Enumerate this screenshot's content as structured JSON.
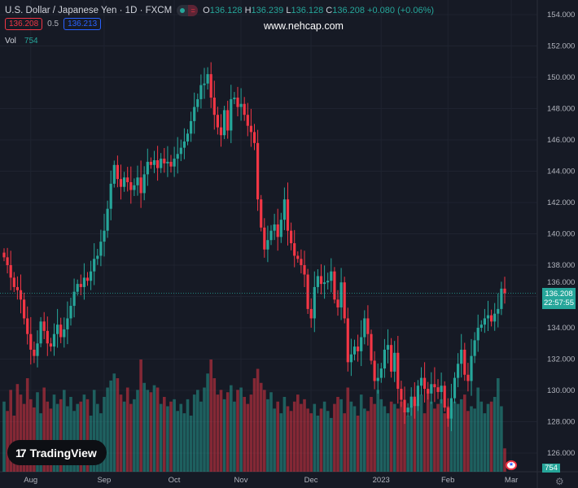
{
  "header": {
    "title": "U.S. Dollar / Japanese Yen · 1D · FXCM",
    "o_label": "O",
    "o": "136.128",
    "h_label": "H",
    "h": "136.239",
    "l_label": "L",
    "l": "136.128",
    "c_label": "C",
    "c": "136.208",
    "change": "+0.080 (+0.06%)",
    "market_status": "="
  },
  "trade": {
    "sell": "136.208",
    "spread": "0.5",
    "buy": "136.213"
  },
  "volume": {
    "label": "Vol",
    "value": "754"
  },
  "watermark": "www.nehcap.com",
  "logo": {
    "text": "TradingView",
    "mark": "17"
  },
  "price_tag": {
    "price": "136.208",
    "countdown": "22:57:55"
  },
  "vol_tag": "754",
  "colors": {
    "up": "#26a69a",
    "down": "#f23645",
    "bg": "#161a25",
    "grid": "#1f2330"
  },
  "chart_data": {
    "type": "candlestick",
    "y_ticks": [
      154,
      152,
      150,
      148,
      146,
      144,
      142,
      140,
      138,
      136,
      134,
      132,
      130,
      128,
      126
    ],
    "ylim": [
      125.5,
      154.5
    ],
    "x_ticks": [
      {
        "label": "Aug",
        "index": 7
      },
      {
        "label": "Sep",
        "index": 29
      },
      {
        "label": "Oct",
        "index": 50
      },
      {
        "label": "Nov",
        "index": 70
      },
      {
        "label": "Dec",
        "index": 91
      },
      {
        "label": "2023",
        "index": 112
      },
      {
        "label": "Feb",
        "index": 132
      },
      {
        "label": "Mar",
        "index": 151
      }
    ],
    "closes": [
      138.5,
      138.0,
      137.2,
      136.6,
      136.4,
      135.8,
      134.6,
      133.6,
      132.6,
      132.2,
      133.0,
      134.4,
      133.8,
      133.0,
      132.8,
      133.6,
      134.2,
      133.4,
      133.9,
      134.6,
      135.4,
      136.3,
      136.8,
      136.6,
      137.2,
      137.0,
      137.6,
      138.4,
      138.6,
      139.5,
      140.2,
      141.6,
      143.2,
      144.4,
      143.5,
      143.0,
      143.6,
      143.3,
      142.8,
      143.1,
      143.6,
      142.6,
      143.8,
      144.6,
      144.4,
      144.7,
      144.2,
      144.8,
      144.5,
      144.6,
      144.3,
      144.8,
      145.1,
      145.5,
      145.9,
      146.4,
      147.2,
      148.1,
      148.6,
      149.5,
      149.6,
      150.2,
      148.7,
      147.6,
      146.8,
      146.3,
      147.9,
      146.6,
      148.6,
      148.7,
      148.1,
      148.3,
      147.6,
      146.9,
      146.5,
      145.8,
      142.2,
      140.4,
      139.0,
      139.6,
      140.2,
      140.6,
      139.8,
      140.9,
      142.2,
      140.2,
      139.4,
      138.6,
      138.4,
      138.0,
      137.4,
      135.2,
      134.6,
      136.6,
      137.3,
      136.8,
      136.9,
      137.0,
      137.6,
      135.8,
      135.3,
      136.9,
      134.6,
      131.8,
      132.3,
      132.8,
      132.5,
      133.4,
      134.6,
      133.6,
      131.9,
      130.6,
      130.8,
      131.4,
      132.6,
      132.9,
      131.2,
      132.4,
      130.1,
      129.4,
      128.6,
      128.9,
      129.6,
      129.0,
      130.3,
      130.8,
      130.1,
      129.8,
      130.4,
      130.2,
      129.9,
      130.3,
      128.9,
      128.2,
      129.5,
      130.8,
      131.7,
      132.6,
      131.0,
      130.6,
      132.2,
      133.2,
      134.0,
      134.2,
      134.6,
      134.8,
      134.4,
      134.9,
      135.2,
      136.5,
      136.208
    ],
    "volumes": [
      60,
      52,
      70,
      48,
      75,
      66,
      58,
      80,
      62,
      55,
      68,
      50,
      72,
      60,
      54,
      66,
      58,
      62,
      70,
      56,
      64,
      52,
      58,
      60,
      66,
      62,
      48,
      70,
      58,
      50,
      64,
      72,
      78,
      84,
      80,
      66,
      60,
      72,
      58,
      62,
      70,
      96,
      76,
      70,
      68,
      74,
      72,
      58,
      64,
      56,
      60,
      62,
      52,
      58,
      50,
      62,
      48,
      66,
      70,
      60,
      72,
      84,
      96,
      80,
      66,
      70,
      62,
      68,
      74,
      60,
      70,
      72,
      64,
      58,
      66,
      80,
      88,
      76,
      70,
      62,
      68,
      54,
      60,
      50,
      64,
      56,
      52,
      60,
      66,
      58,
      62,
      54,
      50,
      58,
      48,
      54,
      60,
      52,
      46,
      58,
      64,
      62,
      50,
      72,
      60,
      56,
      48,
      66,
      54,
      52,
      64,
      58,
      70,
      62,
      56,
      50,
      60,
      58,
      54,
      60,
      52,
      48,
      56,
      62,
      58,
      66,
      50,
      70,
      60,
      54,
      58,
      62,
      50,
      56,
      54,
      60,
      58,
      62,
      66,
      52,
      56,
      54,
      72,
      60,
      50,
      58,
      60,
      64,
      80,
      56,
      20
    ]
  }
}
